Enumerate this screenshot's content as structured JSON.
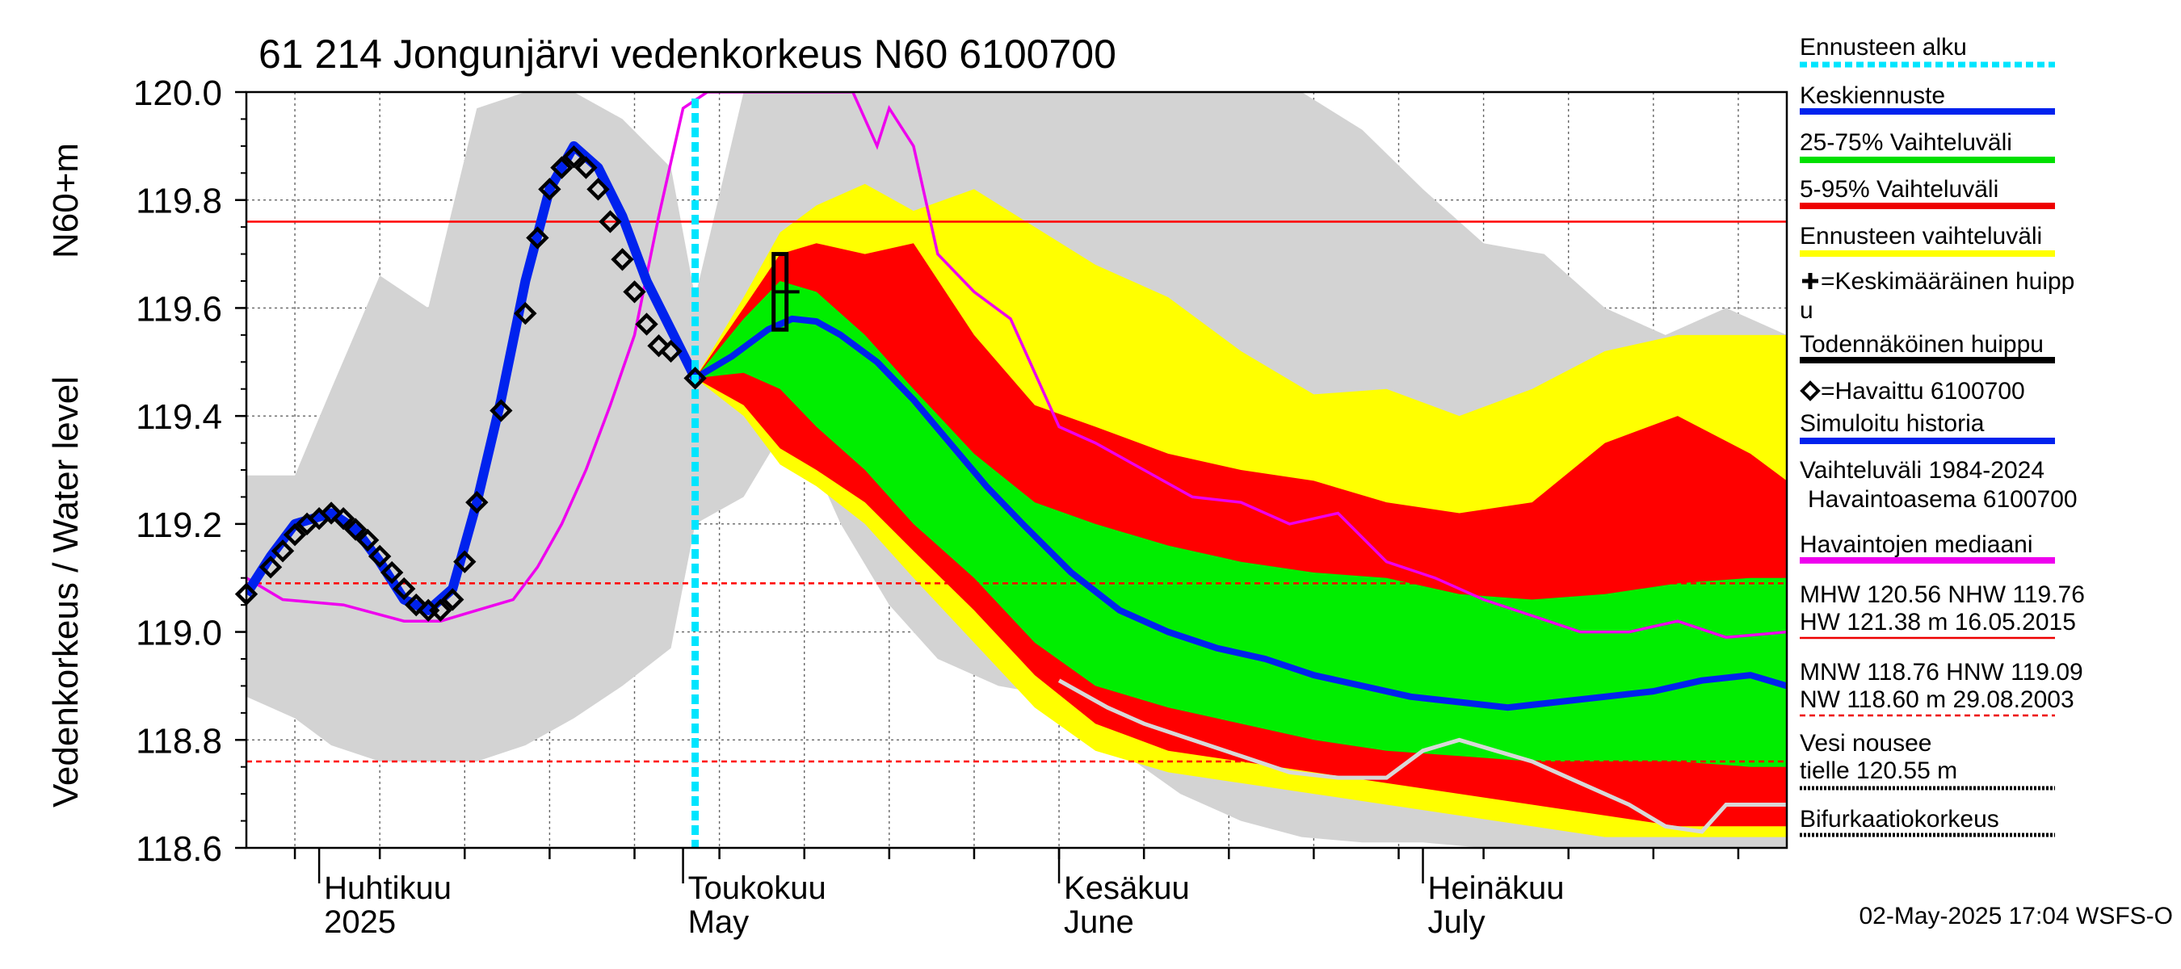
{
  "chart_data": {
    "type": "area",
    "title": "61 214 Jongunjärvi vedenkorkeus N60 6100700",
    "ylabel": "Vedenkorkeus / Water level",
    "ylabel2": "N60+m",
    "ylim": [
      118.6,
      120.0
    ],
    "yticks": [
      "118.6",
      "118.8",
      "119.0",
      "119.2",
      "119.4",
      "119.6",
      "119.8",
      "120.0"
    ],
    "xlim": [
      "2025-03-26",
      "2025-07-31"
    ],
    "forecast_start": "2025-05-02",
    "months": [
      {
        "date": "2025-04-01",
        "label": "Huhtikuu",
        "sub": "2025"
      },
      {
        "date": "2025-05-01",
        "label": "Toukokuu",
        "sub": "May"
      },
      {
        "date": "2025-06-01",
        "label": "Kesäkuu",
        "sub": "June"
      },
      {
        "date": "2025-07-01",
        "label": "Heinäkuu",
        "sub": "July"
      }
    ],
    "reference_lines": [
      {
        "name": "NHW",
        "value": 119.76,
        "style": "solid",
        "color": "#ff0000"
      },
      {
        "name": "HNW",
        "value": 119.09,
        "style": "dashed",
        "color": "#ff0000"
      },
      {
        "name": "MNW",
        "value": 118.76,
        "style": "dashed",
        "color": "#ff0000"
      }
    ],
    "band_dates": [
      "2025-05-02",
      "2025-05-06",
      "2025-05-09",
      "2025-05-12",
      "2025-05-16",
      "2025-05-20",
      "2025-05-25",
      "2025-05-30",
      "2025-06-04",
      "2025-06-10",
      "2025-06-16",
      "2025-06-22",
      "2025-06-28",
      "2025-07-04",
      "2025-07-10",
      "2025-07-16",
      "2025-07-22",
      "2025-07-28",
      "2025-07-31"
    ],
    "history_range": {
      "dates": [
        "2025-03-26",
        "2025-03-30",
        "2025-04-02",
        "2025-04-06",
        "2025-04-10",
        "2025-04-14",
        "2025-04-18",
        "2025-04-22",
        "2025-04-26",
        "2025-04-30",
        "2025-05-02",
        "2025-05-06",
        "2025-05-10",
        "2025-05-14",
        "2025-05-18",
        "2025-05-22",
        "2025-05-27",
        "2025-06-01",
        "2025-06-06",
        "2025-06-11",
        "2025-06-16",
        "2025-06-21",
        "2025-06-26",
        "2025-07-01",
        "2025-07-06",
        "2025-07-11",
        "2025-07-16",
        "2025-07-21",
        "2025-07-26",
        "2025-07-31"
      ],
      "upper": [
        119.29,
        119.29,
        119.45,
        119.66,
        119.6,
        119.97,
        120.0,
        120.0,
        119.95,
        119.86,
        119.62,
        120.0,
        120.0,
        120.0,
        120.0,
        120.0,
        120.0,
        120.0,
        120.0,
        120.0,
        120.0,
        120.0,
        119.93,
        119.82,
        119.72,
        119.7,
        119.6,
        119.55,
        119.6,
        119.55
      ],
      "lower": [
        118.88,
        118.84,
        118.79,
        118.76,
        118.76,
        118.76,
        118.79,
        118.84,
        118.9,
        118.97,
        119.2,
        119.25,
        119.4,
        119.2,
        119.05,
        118.95,
        118.9,
        118.88,
        118.78,
        118.7,
        118.65,
        118.62,
        118.61,
        118.61,
        118.6,
        118.6,
        118.6,
        118.6,
        118.6,
        118.6
      ]
    },
    "forecast_range_upper": [
      119.47,
      119.62,
      119.74,
      119.79,
      119.83,
      119.78,
      119.82,
      119.75,
      119.68,
      119.62,
      119.52,
      119.44,
      119.45,
      119.4,
      119.45,
      119.52,
      119.55,
      119.55,
      119.55
    ],
    "forecast_range_lower": [
      119.47,
      119.4,
      119.31,
      119.27,
      119.2,
      119.1,
      118.98,
      118.86,
      118.78,
      118.74,
      118.72,
      118.7,
      118.68,
      118.66,
      118.64,
      118.62,
      118.62,
      118.62,
      118.62
    ],
    "p5_95_upper": [
      119.47,
      119.6,
      119.7,
      119.72,
      119.7,
      119.72,
      119.55,
      119.42,
      119.38,
      119.33,
      119.3,
      119.28,
      119.24,
      119.22,
      119.24,
      119.35,
      119.4,
      119.33,
      119.28
    ],
    "p5_95_lower": [
      119.47,
      119.42,
      119.34,
      119.3,
      119.24,
      119.15,
      119.04,
      118.92,
      118.83,
      118.78,
      118.76,
      118.74,
      118.72,
      118.7,
      118.68,
      118.66,
      118.64,
      118.64,
      118.64
    ],
    "p25_75_upper": [
      119.47,
      119.58,
      119.65,
      119.63,
      119.55,
      119.45,
      119.33,
      119.24,
      119.2,
      119.16,
      119.13,
      119.11,
      119.1,
      119.07,
      119.06,
      119.07,
      119.09,
      119.1,
      119.1
    ],
    "p25_75_lower": [
      119.47,
      119.48,
      119.45,
      119.38,
      119.3,
      119.2,
      119.1,
      118.98,
      118.9,
      118.86,
      118.83,
      118.8,
      118.78,
      118.77,
      118.76,
      118.76,
      118.76,
      118.75,
      118.75
    ],
    "mean_forecast": {
      "dates": [
        "2025-05-02",
        "2025-05-05",
        "2025-05-08",
        "2025-05-10",
        "2025-05-12",
        "2025-05-14",
        "2025-05-17",
        "2025-05-20",
        "2025-05-23",
        "2025-05-26",
        "2025-05-29",
        "2025-06-02",
        "2025-06-06",
        "2025-06-10",
        "2025-06-14",
        "2025-06-18",
        "2025-06-22",
        "2025-06-26",
        "2025-06-30",
        "2025-07-04",
        "2025-07-08",
        "2025-07-12",
        "2025-07-16",
        "2025-07-20",
        "2025-07-24",
        "2025-07-28",
        "2025-07-31"
      ],
      "values": [
        119.47,
        119.51,
        119.56,
        119.58,
        119.575,
        119.55,
        119.5,
        119.43,
        119.35,
        119.27,
        119.2,
        119.11,
        119.04,
        119.0,
        118.97,
        118.95,
        118.92,
        118.9,
        118.88,
        118.87,
        118.86,
        118.87,
        118.88,
        118.89,
        118.91,
        118.92,
        118.9
      ]
    },
    "simulated_history": {
      "dates": [
        "2025-03-26",
        "2025-03-28",
        "2025-03-30",
        "2025-04-02",
        "2025-04-04",
        "2025-04-06",
        "2025-04-08",
        "2025-04-10",
        "2025-04-12",
        "2025-04-14",
        "2025-04-16",
        "2025-04-18",
        "2025-04-20",
        "2025-04-22",
        "2025-04-24",
        "2025-04-26",
        "2025-04-28",
        "2025-04-30",
        "2025-05-02"
      ],
      "values": [
        119.07,
        119.14,
        119.2,
        119.22,
        119.19,
        119.13,
        119.06,
        119.04,
        119.08,
        119.24,
        119.43,
        119.65,
        119.82,
        119.9,
        119.86,
        119.77,
        119.65,
        119.56,
        119.47
      ]
    },
    "observed": {
      "name": "Havaittu 6100700",
      "dates": [
        "2025-03-26",
        "2025-03-28",
        "2025-03-29",
        "2025-03-30",
        "2025-03-31",
        "2025-04-01",
        "2025-04-02",
        "2025-04-03",
        "2025-04-04",
        "2025-04-05",
        "2025-04-06",
        "2025-04-07",
        "2025-04-08",
        "2025-04-09",
        "2025-04-10",
        "2025-04-11",
        "2025-04-12",
        "2025-04-13",
        "2025-04-14",
        "2025-04-16",
        "2025-04-18",
        "2025-04-19",
        "2025-04-20",
        "2025-04-21",
        "2025-04-22",
        "2025-04-23",
        "2025-04-24",
        "2025-04-25",
        "2025-04-26",
        "2025-04-27",
        "2025-04-28",
        "2025-04-29",
        "2025-04-30",
        "2025-05-02"
      ],
      "values": [
        119.07,
        119.12,
        119.15,
        119.18,
        119.2,
        119.21,
        119.22,
        119.21,
        119.19,
        119.17,
        119.14,
        119.11,
        119.08,
        119.05,
        119.04,
        119.04,
        119.06,
        119.13,
        119.24,
        119.41,
        119.59,
        119.73,
        119.82,
        119.86,
        119.88,
        119.86,
        119.82,
        119.76,
        119.69,
        119.63,
        119.57,
        119.53,
        119.52,
        119.47
      ]
    },
    "observation_median": {
      "name": "Havaintojen mediaani",
      "dates": [
        "2025-03-26",
        "2025-03-29",
        "2025-04-03",
        "2025-04-08",
        "2025-04-11",
        "2025-04-14",
        "2025-04-17",
        "2025-04-19",
        "2025-04-21",
        "2025-04-23",
        "2025-04-25",
        "2025-04-27",
        "2025-04-29",
        "2025-05-01",
        "2025-05-03",
        "2025-05-05",
        "2025-05-07",
        "2025-05-09",
        "2025-05-12",
        "2025-05-15",
        "2025-05-17",
        "2025-05-18",
        "2025-05-20",
        "2025-05-22",
        "2025-05-25",
        "2025-05-28",
        "2025-06-01",
        "2025-06-04",
        "2025-06-08",
        "2025-06-12",
        "2025-06-16",
        "2025-06-20",
        "2025-06-24",
        "2025-06-28",
        "2025-07-02",
        "2025-07-06",
        "2025-07-10",
        "2025-07-14",
        "2025-07-18",
        "2025-07-22",
        "2025-07-26",
        "2025-07-31"
      ],
      "values": [
        119.1,
        119.06,
        119.05,
        119.02,
        119.02,
        119.04,
        119.06,
        119.12,
        119.2,
        119.3,
        119.42,
        119.55,
        119.77,
        119.97,
        120.0,
        120.0,
        120.0,
        120.0,
        120.0,
        120.0,
        119.9,
        119.97,
        119.9,
        119.7,
        119.63,
        119.58,
        119.38,
        119.35,
        119.3,
        119.25,
        119.24,
        119.2,
        119.22,
        119.13,
        119.1,
        119.06,
        119.03,
        119.0,
        119.0,
        119.02,
        118.99,
        119.0
      ]
    },
    "worst_case_history": {
      "dates": [
        "2025-06-01",
        "2025-06-05",
        "2025-06-08",
        "2025-06-12",
        "2025-06-16",
        "2025-06-20",
        "2025-06-24",
        "2025-06-28",
        "2025-07-01",
        "2025-07-04",
        "2025-07-07",
        "2025-07-10",
        "2025-07-14",
        "2025-07-18",
        "2025-07-21",
        "2025-07-24",
        "2025-07-26",
        "2025-07-28",
        "2025-07-31"
      ],
      "values": [
        118.91,
        118.86,
        118.83,
        118.8,
        118.77,
        118.74,
        118.73,
        118.73,
        118.78,
        118.8,
        118.78,
        118.76,
        118.72,
        118.68,
        118.64,
        118.63,
        118.68,
        118.68,
        118.68
      ]
    },
    "predicted_peak": {
      "date": "2025-05-09",
      "low": 119.56,
      "high": 119.7,
      "mean": 119.63
    },
    "legend": [
      {
        "label": "Ennusteen alku",
        "color": "#00e5ff",
        "style": "dotted"
      },
      {
        "label": "Keskiennuste",
        "color": "#0022ee",
        "style": "solid"
      },
      {
        "label": "25-75% Vaihteluväli",
        "color": "#00e000",
        "style": "solid"
      },
      {
        "label": "5-95% Vaihteluväli",
        "color": "#ee0000",
        "style": "solid"
      },
      {
        "label": "Ennusteen vaihteluväli",
        "color": "#ffff00",
        "style": "solid"
      },
      {
        "label": "=Keskimääräinen huippu",
        "color": "#000000",
        "style": "solid"
      },
      {
        "label": "Todennäköinen huippu",
        "color": "#000000",
        "style": "solid"
      },
      {
        "label": "=Havaittu 6100700",
        "color": "#000000",
        "style": "solid"
      },
      {
        "label": "Simuloitu historia",
        "color": "#0022ee",
        "style": "solid"
      },
      {
        "label": "Vaihteluväli 1984-2024",
        "color": "#bdbdbd",
        "style": "solid"
      },
      {
        "label": "Havaintoasema 6100700",
        "color": "#ffffff",
        "style": "none"
      },
      {
        "label": "Havaintojen mediaani",
        "color": "#ee00ee",
        "style": "solid"
      },
      {
        "label": "MHW 120.56 NHW 119.76",
        "color": "#ffffff",
        "style": "none"
      },
      {
        "label": "HW 121.38 m 16.05.2015",
        "color": "#ee0000",
        "style": "solid"
      },
      {
        "label": "MNW 118.76 HNW 119.09",
        "color": "#ffffff",
        "style": "none"
      },
      {
        "label": "NW 118.60 m 29.08.2003",
        "color": "#ee0000",
        "style": "dashed"
      },
      {
        "label": "Vesi nousee",
        "color": "#ffffff",
        "style": "none"
      },
      {
        "label": "tielle 120.55 m",
        "color": "#000000",
        "style": "dotted"
      },
      {
        "label": "Bifurkaatiokorkeus",
        "color": "#000000",
        "style": "dotted"
      }
    ],
    "footer": "02-May-2025 17:04 WSFS-O"
  }
}
